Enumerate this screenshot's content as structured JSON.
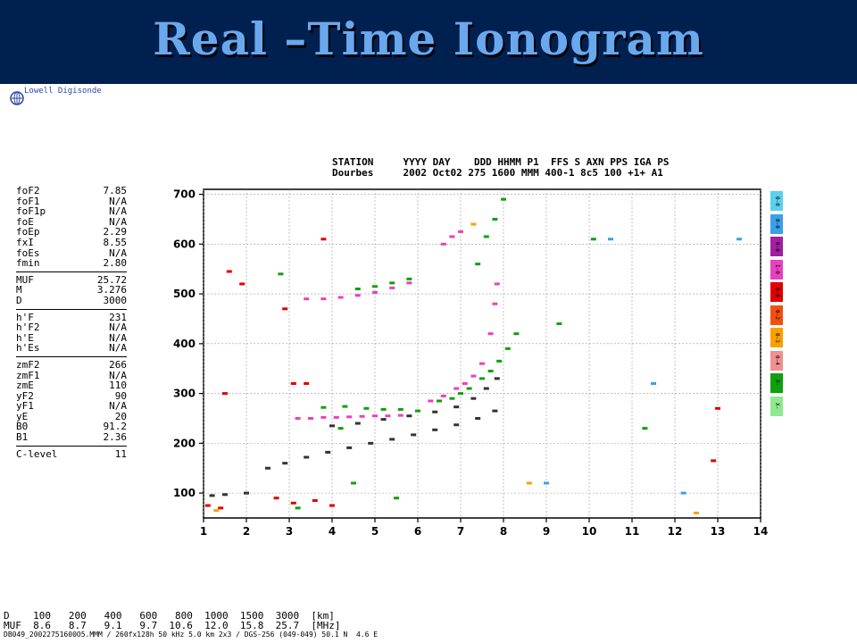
{
  "banner": {
    "title": "Real –Time Ionogram"
  },
  "logo_text": "Lowell Digisonde",
  "header": {
    "row1": "STATION     YYYY DAY    DDD HHMM P1  FFS S AXN PPS IGA PS",
    "row2": "Dourbes     2002 Oct02 275 1600 MMM 400-1 8c5 100 +1+ A1"
  },
  "params": {
    "groups": [
      [
        [
          "foF2",
          "7.85"
        ],
        [
          "foF1",
          "N/A"
        ],
        [
          "foF1p",
          "N/A"
        ],
        [
          "foE",
          "N/A"
        ],
        [
          "foEp",
          "2.29"
        ],
        [
          "fxI",
          "8.55"
        ],
        [
          "foEs",
          "N/A"
        ],
        [
          "fmin",
          "2.80"
        ]
      ],
      [
        [
          "MUF",
          "25.72"
        ],
        [
          "M",
          "3.276"
        ],
        [
          "D",
          "3000"
        ]
      ],
      [
        [
          "h'F",
          "231"
        ],
        [
          "h'F2",
          "N/A"
        ],
        [
          "h'E",
          "N/A"
        ],
        [
          "h'Es",
          "N/A"
        ]
      ],
      [
        [
          "zmF2",
          "266"
        ],
        [
          "zmF1",
          "N/A"
        ],
        [
          "zmE",
          "110"
        ],
        [
          "yF2",
          "90"
        ],
        [
          "yF1",
          "N/A"
        ],
        [
          "yE",
          "20"
        ],
        [
          "B0",
          "91.2"
        ],
        [
          "B1",
          "2.36"
        ]
      ],
      [
        [
          "C-level",
          "11"
        ]
      ]
    ]
  },
  "legend": [
    {
      "label": "0-0",
      "color": "#5ad0ee"
    },
    {
      "label": "0-0",
      "color": "#3aa0e8"
    },
    {
      "label": "0-0",
      "color": "#a020a0"
    },
    {
      "label": "I-0",
      "color": "#e840c0"
    },
    {
      "label": "0-0",
      "color": "#e00000"
    },
    {
      "label": "0-2",
      "color": "#f05010"
    },
    {
      "label": "0-3",
      "color": "#f8a000"
    },
    {
      "label": "0-4",
      "color": "#f09090"
    },
    {
      "label": "X-",
      "color": "#10a010"
    },
    {
      "label": "X-",
      "color": "#90e890"
    }
  ],
  "footer": {
    "row1": "D    100   200   400   600   800  1000  1500  3000  [km]",
    "row2": "MUF  8.6   8.7   9.1   9.7  10.6  12.0  15.8  25.7  [MHz]",
    "row3": "DB049_20022751600O5.MMM / 260fx128h 50 kHz 5.0 km 2x3 / DGS-256 (049-049) 50.1 N  4.6 E"
  },
  "chart_data": {
    "type": "scatter",
    "xlim": [
      1,
      14
    ],
    "ylim": [
      50,
      710
    ],
    "x_ticks": [
      1,
      2,
      3,
      4,
      5,
      6,
      7,
      8,
      9,
      10,
      11,
      12,
      13,
      14
    ],
    "y_ticks": [
      100,
      200,
      300,
      400,
      500,
      600,
      700
    ],
    "grid": true,
    "series": [
      {
        "color": "#e840c0",
        "points": [
          [
            3.2,
            250
          ],
          [
            3.5,
            250
          ],
          [
            3.8,
            252
          ],
          [
            4.1,
            252
          ],
          [
            4.4,
            253
          ],
          [
            4.7,
            254
          ],
          [
            5.0,
            255
          ],
          [
            5.3,
            255
          ],
          [
            5.6,
            256
          ],
          [
            3.4,
            490
          ],
          [
            3.8,
            490
          ],
          [
            4.2,
            493
          ],
          [
            4.6,
            497
          ],
          [
            5.0,
            503
          ],
          [
            5.4,
            512
          ],
          [
            5.8,
            522
          ],
          [
            6.3,
            285
          ],
          [
            6.6,
            295
          ],
          [
            6.9,
            310
          ],
          [
            7.1,
            320
          ],
          [
            7.3,
            335
          ],
          [
            7.5,
            360
          ],
          [
            7.7,
            420
          ],
          [
            7.8,
            480
          ],
          [
            7.85,
            520
          ],
          [
            6.6,
            600
          ],
          [
            6.8,
            615
          ],
          [
            7.0,
            625
          ]
        ]
      },
      {
        "color": "#10a010",
        "points": [
          [
            3.8,
            272
          ],
          [
            4.3,
            274
          ],
          [
            4.8,
            270
          ],
          [
            5.2,
            268
          ],
          [
            5.6,
            268
          ],
          [
            6.0,
            265
          ],
          [
            4.6,
            510
          ],
          [
            5.0,
            515
          ],
          [
            5.4,
            522
          ],
          [
            5.8,
            530
          ],
          [
            6.5,
            285
          ],
          [
            6.8,
            290
          ],
          [
            7.0,
            300
          ],
          [
            7.2,
            310
          ],
          [
            7.5,
            330
          ],
          [
            7.7,
            345
          ],
          [
            7.9,
            365
          ],
          [
            8.1,
            390
          ],
          [
            8.3,
            420
          ],
          [
            7.4,
            560
          ],
          [
            7.6,
            615
          ],
          [
            7.8,
            650
          ],
          [
            8.0,
            690
          ],
          [
            4.2,
            230
          ],
          [
            4.5,
            120
          ],
          [
            5.5,
            90
          ],
          [
            2.8,
            540
          ],
          [
            3.2,
            70
          ],
          [
            9.3,
            440
          ],
          [
            10.1,
            610
          ],
          [
            11.3,
            230
          ]
        ]
      },
      {
        "color": "#333333",
        "points": [
          [
            2.5,
            150
          ],
          [
            2.9,
            160
          ],
          [
            3.4,
            172
          ],
          [
            3.9,
            182
          ],
          [
            4.4,
            191
          ],
          [
            4.9,
            200
          ],
          [
            5.4,
            208
          ],
          [
            5.9,
            217
          ],
          [
            6.4,
            227
          ],
          [
            6.9,
            237
          ],
          [
            7.4,
            250
          ],
          [
            7.8,
            265
          ],
          [
            1.2,
            95
          ],
          [
            1.5,
            97
          ],
          [
            2.0,
            100
          ],
          [
            4.0,
            235
          ],
          [
            4.6,
            240
          ],
          [
            5.2,
            248
          ],
          [
            5.8,
            255
          ],
          [
            6.4,
            263
          ],
          [
            6.9,
            273
          ],
          [
            7.3,
            290
          ],
          [
            7.6,
            310
          ],
          [
            7.85,
            330
          ]
        ]
      },
      {
        "color": "#e00000",
        "points": [
          [
            1.6,
            545
          ],
          [
            1.9,
            520
          ],
          [
            1.5,
            300
          ],
          [
            2.9,
            470
          ],
          [
            3.1,
            320
          ],
          [
            3.4,
            320
          ],
          [
            2.7,
            90
          ],
          [
            3.1,
            80
          ],
          [
            3.6,
            85
          ],
          [
            4.0,
            75
          ],
          [
            1.1,
            75
          ],
          [
            1.4,
            70
          ],
          [
            12.9,
            165
          ],
          [
            13.0,
            270
          ],
          [
            3.8,
            610
          ]
        ]
      },
      {
        "color": "#3aa0e8",
        "points": [
          [
            10.5,
            610
          ],
          [
            11.5,
            320
          ],
          [
            13.5,
            610
          ],
          [
            12.2,
            100
          ],
          [
            9.0,
            120
          ]
        ]
      },
      {
        "color": "#f8a000",
        "points": [
          [
            12.5,
            60
          ],
          [
            1.3,
            65
          ],
          [
            7.3,
            640
          ],
          [
            8.6,
            120
          ]
        ]
      }
    ]
  }
}
